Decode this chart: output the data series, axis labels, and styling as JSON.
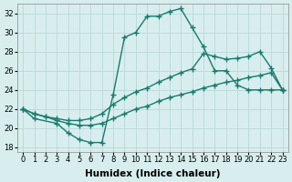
{
  "title": "",
  "xlabel": "Humidex (Indice chaleur)",
  "ylabel": "",
  "background_color": "#d8eeee",
  "line_color": "#1a7a6e",
  "grid_color": "#b8d8d8",
  "xlim": [
    -0.5,
    23.5
  ],
  "ylim": [
    17.5,
    33.0
  ],
  "xticks": [
    0,
    1,
    2,
    3,
    4,
    5,
    6,
    7,
    8,
    9,
    10,
    11,
    12,
    13,
    14,
    15,
    16,
    17,
    18,
    19,
    20,
    21,
    22,
    23
  ],
  "yticks": [
    18,
    20,
    22,
    24,
    26,
    28,
    30,
    32
  ],
  "lines": [
    {
      "x": [
        0,
        1,
        3,
        4,
        5,
        6,
        7,
        8,
        9,
        10,
        11,
        12,
        13,
        14,
        15,
        16,
        17,
        18,
        19,
        20,
        21,
        22,
        23
      ],
      "y": [
        22,
        21,
        20.5,
        19.5,
        18.8,
        18.5,
        18.5,
        23.5,
        29.5,
        30.0,
        31.7,
        31.7,
        32.2,
        32.5,
        30.5,
        28.5,
        26.0,
        26.0,
        24.5,
        24.0,
        24.0,
        24.0,
        24.0
      ]
    },
    {
      "x": [
        0,
        1,
        2,
        3,
        4,
        5,
        6,
        7,
        8,
        9,
        10,
        11,
        12,
        13,
        14,
        15,
        16,
        17,
        18,
        19,
        20,
        21,
        22,
        23
      ],
      "y": [
        22,
        21.5,
        21.2,
        21.0,
        20.8,
        20.8,
        21.0,
        21.5,
        22.5,
        23.2,
        23.8,
        24.2,
        24.8,
        25.3,
        25.8,
        26.2,
        27.8,
        27.5,
        27.2,
        27.3,
        27.5,
        28.0,
        26.3,
        24.0
      ]
    },
    {
      "x": [
        0,
        1,
        2,
        3,
        4,
        5,
        6,
        7,
        8,
        9,
        10,
        11,
        12,
        13,
        14,
        15,
        16,
        17,
        18,
        19,
        20,
        21,
        22,
        23
      ],
      "y": [
        22,
        21.5,
        21.2,
        20.8,
        20.5,
        20.3,
        20.3,
        20.5,
        21.0,
        21.5,
        22.0,
        22.3,
        22.8,
        23.2,
        23.5,
        23.8,
        24.2,
        24.5,
        24.8,
        25.0,
        25.3,
        25.5,
        25.8,
        24.0
      ]
    }
  ],
  "marker": "+",
  "markersize": 5,
  "linewidth": 1.0,
  "tick_fontsize": 6,
  "xlabel_fontsize": 7.5
}
